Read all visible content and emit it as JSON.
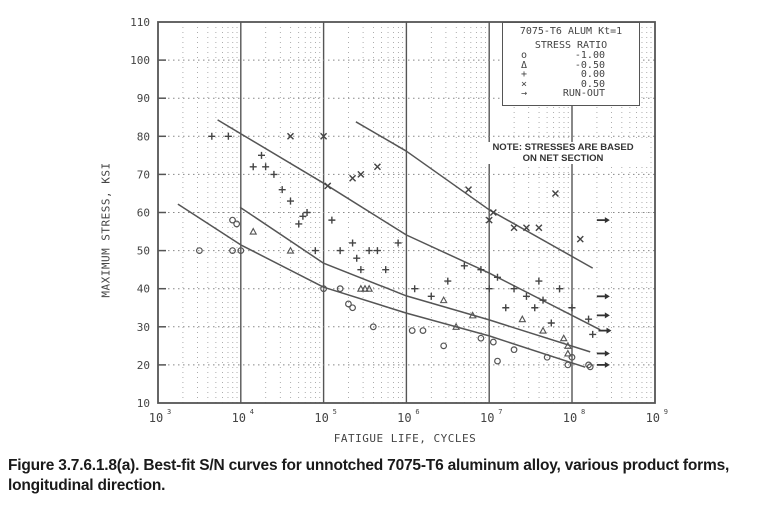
{
  "chart_data": {
    "type": "scatter",
    "title": "7075-T6 ALUM Kt=1",
    "xlabel": "FATIGUE LIFE, CYCLES",
    "ylabel": "MAXIMUM STRESS, KSI",
    "xscale": "log",
    "xlim": [
      1000,
      1000000000
    ],
    "ylim": [
      10,
      110
    ],
    "x_ticks": [
      "10^3",
      "10^4",
      "10^5",
      "10^6",
      "10^7",
      "10^8",
      "10^9"
    ],
    "y_ticks": [
      10,
      20,
      30,
      40,
      50,
      60,
      70,
      80,
      90,
      100,
      110
    ],
    "grid": true,
    "legend": {
      "title": "STRESS RATIO",
      "position": "upper right",
      "entries": [
        {
          "symbol": "circle",
          "glyph": "o",
          "label": "-1.00"
        },
        {
          "symbol": "triangle",
          "glyph": "Δ",
          "label": "-0.50"
        },
        {
          "symbol": "plus",
          "glyph": "+",
          "label": "0.00"
        },
        {
          "symbol": "cross",
          "glyph": "×",
          "label": "0.50"
        },
        {
          "symbol": "arrow",
          "glyph": "→",
          "label": "RUN-OUT"
        }
      ]
    },
    "annotations": [
      "NOTE: STRESSES ARE BASED",
      "ON NET SECTION"
    ],
    "best_fit_curves": [
      {
        "name": "R=0.50",
        "log10N": [
          5.39,
          6.0,
          7.0,
          8.25
        ],
        "ksi": [
          83.8,
          76.1,
          60.7,
          45.4
        ]
      },
      {
        "name": "R=0.00",
        "log10N": [
          3.72,
          5.0,
          6.0,
          7.0,
          8.34
        ],
        "ksi": [
          84.3,
          67.7,
          54.1,
          44.1,
          29.2
        ]
      },
      {
        "name": "R=-0.50",
        "log10N": [
          3.99,
          5.0,
          6.0,
          7.0,
          8.22
        ],
        "ksi": [
          61.4,
          46.7,
          38.1,
          31.8,
          23.4
        ]
      },
      {
        "name": "R=-1.00",
        "log10N": [
          3.24,
          4.0,
          5.0,
          6.0,
          7.0,
          8.16
        ],
        "ksi": [
          62.2,
          51.5,
          40.4,
          33.6,
          27.6,
          19.4
        ]
      }
    ],
    "series": [
      {
        "name": "R=-1.00",
        "marker": "circle",
        "log10N": [
          3.5,
          3.9,
          3.95,
          3.9,
          4.0,
          5.0,
          5.2,
          5.3,
          5.35,
          5.6,
          6.07,
          6.2,
          6.45,
          6.9,
          7.05,
          7.1,
          7.3,
          7.7,
          7.95,
          8.0,
          8.2,
          8.22
        ],
        "ksi": [
          50,
          58,
          57,
          50,
          50,
          40,
          40,
          36,
          35,
          30,
          29,
          29,
          25,
          27,
          26,
          21,
          24,
          22,
          20,
          22,
          20,
          19.5
        ]
      },
      {
        "name": "R=-0.50",
        "marker": "triangle",
        "log10N": [
          4.15,
          4.6,
          5.45,
          5.5,
          5.55,
          6.45,
          6.6,
          6.8,
          7.4,
          7.65,
          7.9,
          7.95,
          7.95
        ],
        "ksi": [
          55,
          50,
          40,
          40,
          40,
          37,
          30,
          33,
          32,
          29,
          27,
          25,
          23
        ]
      },
      {
        "name": "R=0.00",
        "marker": "plus",
        "log10N": [
          3.65,
          3.85,
          4.15,
          4.25,
          4.3,
          4.4,
          4.5,
          4.6,
          4.7,
          4.75,
          4.8,
          4.9,
          5.1,
          5.2,
          5.35,
          5.4,
          5.45,
          5.55,
          5.65,
          5.75,
          5.9,
          6.1,
          6.3,
          6.5,
          6.7,
          6.9,
          7.0,
          7.1,
          7.2,
          7.3,
          7.45,
          7.55,
          7.6,
          7.65,
          7.75,
          7.85,
          8.0,
          8.2,
          8.25
        ],
        "ksi": [
          80,
          80,
          72,
          75,
          72,
          70,
          66,
          63,
          57,
          59,
          60,
          50,
          58,
          50,
          52,
          48,
          45,
          50,
          50,
          45,
          52,
          40,
          38,
          42,
          46,
          45,
          40,
          43,
          35,
          40,
          38,
          35,
          42,
          37,
          31,
          40,
          35,
          32,
          28
        ]
      },
      {
        "name": "R=0.50",
        "marker": "cross",
        "log10N": [
          4.6,
          5.0,
          5.05,
          5.35,
          5.45,
          5.65,
          6.75,
          7.0,
          7.05,
          7.3,
          7.45,
          7.6,
          7.8,
          8.1
        ],
        "ksi": [
          80,
          80,
          67,
          69,
          70,
          72,
          66,
          58,
          60,
          56,
          56,
          56,
          65,
          53
        ]
      },
      {
        "name": "Run-out",
        "marker": "arrow",
        "log10N": [
          8.3,
          8.3,
          8.3,
          8.32,
          8.3,
          8.3
        ],
        "ksi": [
          58,
          38,
          33,
          29,
          23,
          20
        ]
      }
    ]
  },
  "axes": {
    "y_tick_labels": [
      "110",
      "100",
      "90",
      "80",
      "70",
      "60",
      "50",
      "40",
      "30",
      "20",
      "10"
    ],
    "x_tick_labels": [
      {
        "base": "10",
        "exp": "3"
      },
      {
        "base": "10",
        "exp": "4"
      },
      {
        "base": "10",
        "exp": "5"
      },
      {
        "base": "10",
        "exp": "6"
      },
      {
        "base": "10",
        "exp": "7"
      },
      {
        "base": "10",
        "exp": "8"
      },
      {
        "base": "10",
        "exp": "9"
      }
    ],
    "xlabel": "FATIGUE LIFE, CYCLES",
    "ylabel": "MAXIMUM STRESS, KSI"
  },
  "legend": {
    "title1": "7075-T6 ALUM Kt=1",
    "title2": "STRESS RATIO",
    "rows": [
      {
        "sym": "o",
        "val": "-1.00"
      },
      {
        "sym": "Δ",
        "val": "-0.50"
      },
      {
        "sym": "+",
        "val": "0.00"
      },
      {
        "sym": "×",
        "val": "0.50"
      },
      {
        "sym": "→",
        "val": "RUN-OUT"
      }
    ]
  },
  "note": {
    "line1": "NOTE: STRESSES ARE BASED",
    "line2": "ON NET SECTION"
  },
  "caption": "Figure 3.7.6.1.8(a).  Best-fit S/N curves for unnotched 7075-T6 aluminum alloy, various product forms, longitudinal direction."
}
